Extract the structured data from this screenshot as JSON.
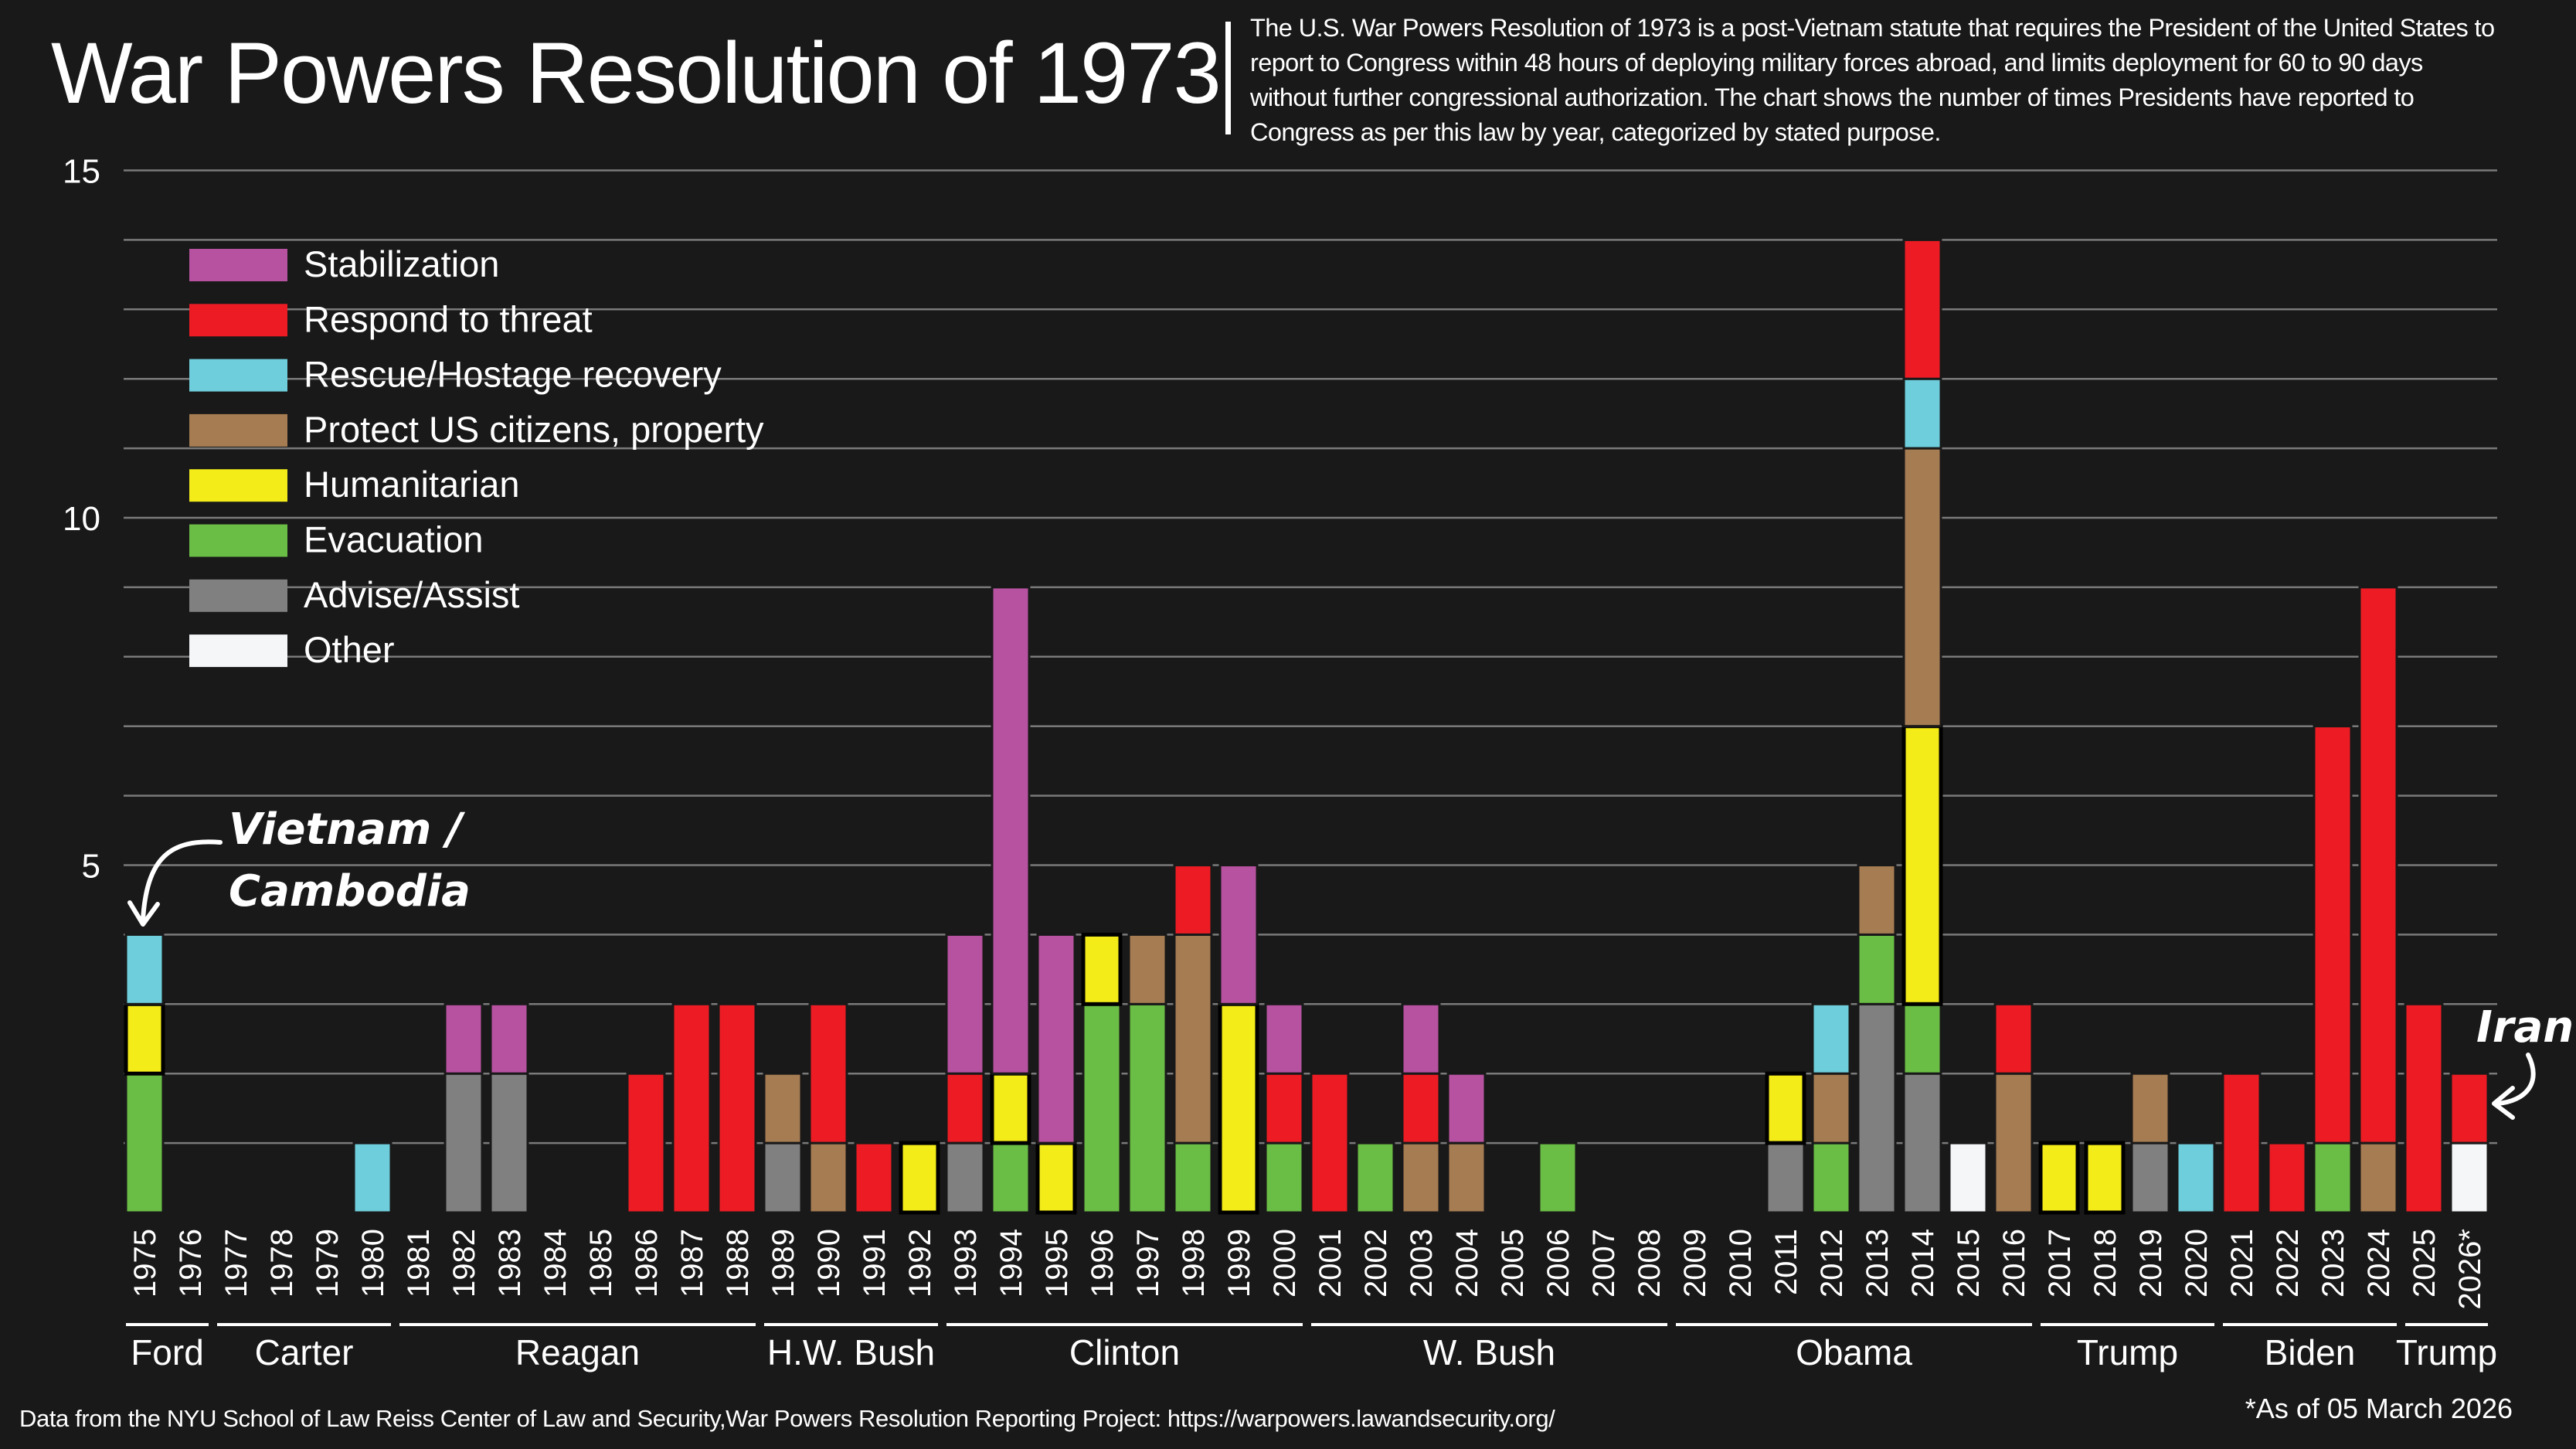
{
  "header": {
    "title": "War Powers Resolution of 1973",
    "description": "The  U.S. War Powers Resolution of 1973 is a post-Vietnam statute that requires the President of the United States to report to Congress within 48 hours of deploying military forces abroad, and limits deployment for 60 to 90 days without further congressional authorization. The chart shows the number of times Presidents have reported to Congress as per this law by year, categorized by stated purpose."
  },
  "footer": {
    "source": "Data from the NYU School of Law Reiss Center of Law and Security,War Powers Resolution Reporting Project: https://warpowers.lawandsecurity.org/",
    "as_of": "*As of 05 March 2026"
  },
  "chart_data": {
    "type": "bar",
    "stacked": true,
    "ylim": [
      0,
      15
    ],
    "yticks": [
      "5",
      "10",
      "15"
    ],
    "grid": true,
    "legend_placement": "top-left",
    "categories_stack_order": [
      "other",
      "advise",
      "evac",
      "human",
      "protect",
      "rescue",
      "threat",
      "stab"
    ],
    "legend": [
      {
        "key": "stab",
        "label": "Stabilization",
        "color": "#b752a0"
      },
      {
        "key": "threat",
        "label": "Respond to threat",
        "color": "#ed1c24"
      },
      {
        "key": "rescue",
        "label": "Rescue/Hostage recovery",
        "color": "#6ecedb"
      },
      {
        "key": "protect",
        "label": "Protect US citizens, property",
        "color": "#a67c52"
      },
      {
        "key": "human",
        "label": "Humanitarian",
        "color": "#f3ec19"
      },
      {
        "key": "evac",
        "label": "Evacuation",
        "color": "#6abd45"
      },
      {
        "key": "advise",
        "label": "Advise/Assist",
        "color": "#808080"
      },
      {
        "key": "other",
        "label": "Other",
        "color": "#f4f6f8"
      }
    ],
    "years": [
      {
        "label": "1975",
        "counts": {
          "evac": 2,
          "human": 1,
          "rescue": 1
        }
      },
      {
        "label": "1976",
        "counts": {}
      },
      {
        "label": "1977",
        "counts": {}
      },
      {
        "label": "1978",
        "counts": {}
      },
      {
        "label": "1979",
        "counts": {}
      },
      {
        "label": "1980",
        "counts": {
          "rescue": 1
        }
      },
      {
        "label": "1981",
        "counts": {}
      },
      {
        "label": "1982",
        "counts": {
          "advise": 2,
          "stab": 1
        }
      },
      {
        "label": "1983",
        "counts": {
          "advise": 2,
          "stab": 1
        }
      },
      {
        "label": "1984",
        "counts": {}
      },
      {
        "label": "1985",
        "counts": {}
      },
      {
        "label": "1986",
        "counts": {
          "threat": 2
        }
      },
      {
        "label": "1987",
        "counts": {
          "threat": 3
        }
      },
      {
        "label": "1988",
        "counts": {
          "threat": 3
        }
      },
      {
        "label": "1989",
        "counts": {
          "advise": 1,
          "protect": 1
        }
      },
      {
        "label": "1990",
        "counts": {
          "protect": 1,
          "threat": 2
        }
      },
      {
        "label": "1991",
        "counts": {
          "threat": 1
        }
      },
      {
        "label": "1992",
        "counts": {
          "human": 1
        }
      },
      {
        "label": "1993",
        "counts": {
          "advise": 1,
          "threat": 1,
          "stab": 2
        }
      },
      {
        "label": "1994",
        "counts": {
          "evac": 1,
          "human": 1,
          "stab": 7
        }
      },
      {
        "label": "1995",
        "counts": {
          "human": 1,
          "stab": 3
        }
      },
      {
        "label": "1996",
        "counts": {
          "evac": 3,
          "human": 1
        }
      },
      {
        "label": "1997",
        "counts": {
          "evac": 3,
          "protect": 1
        }
      },
      {
        "label": "1998",
        "counts": {
          "evac": 1,
          "protect": 3,
          "threat": 1
        }
      },
      {
        "label": "1999",
        "counts": {
          "human": 3,
          "stab": 2
        }
      },
      {
        "label": "2000",
        "counts": {
          "evac": 1,
          "threat": 1,
          "stab": 1
        }
      },
      {
        "label": "2001",
        "counts": {
          "threat": 2
        }
      },
      {
        "label": "2002",
        "counts": {
          "evac": 1
        }
      },
      {
        "label": "2003",
        "counts": {
          "protect": 1,
          "threat": 1,
          "stab": 1
        }
      },
      {
        "label": "2004",
        "counts": {
          "protect": 1,
          "stab": 1
        }
      },
      {
        "label": "2005",
        "counts": {}
      },
      {
        "label": "2006",
        "counts": {
          "evac": 1
        }
      },
      {
        "label": "2007",
        "counts": {}
      },
      {
        "label": "2008",
        "counts": {}
      },
      {
        "label": "2009",
        "counts": {}
      },
      {
        "label": "2010",
        "counts": {}
      },
      {
        "label": "2011",
        "counts": {
          "advise": 1,
          "human": 1
        }
      },
      {
        "label": "2012",
        "counts": {
          "evac": 1,
          "protect": 1,
          "rescue": 1
        }
      },
      {
        "label": "2013",
        "counts": {
          "advise": 3,
          "evac": 1,
          "protect": 1
        }
      },
      {
        "label": "2014",
        "counts": {
          "advise": 2,
          "evac": 1,
          "human": 4,
          "protect": 4,
          "rescue": 1,
          "threat": 2
        }
      },
      {
        "label": "2015",
        "counts": {
          "other": 1
        }
      },
      {
        "label": "2016",
        "counts": {
          "protect": 2,
          "threat": 1
        }
      },
      {
        "label": "2017",
        "counts": {
          "human": 1
        }
      },
      {
        "label": "2018",
        "counts": {
          "human": 1
        }
      },
      {
        "label": "2019",
        "counts": {
          "advise": 1,
          "protect": 1
        }
      },
      {
        "label": "2020",
        "counts": {
          "rescue": 1
        }
      },
      {
        "label": "2021",
        "counts": {
          "threat": 2
        }
      },
      {
        "label": "2022",
        "counts": {
          "threat": 1
        }
      },
      {
        "label": "2023",
        "counts": {
          "evac": 1,
          "threat": 6
        }
      },
      {
        "label": "2024",
        "counts": {
          "protect": 1,
          "threat": 8
        }
      },
      {
        "label": "2025",
        "counts": {
          "threat": 3
        }
      },
      {
        "label": "2026*",
        "counts": {
          "other": 1,
          "threat": 1
        }
      }
    ],
    "presidents": [
      {
        "name": "Ford",
        "from": "1975",
        "to": "1976"
      },
      {
        "name": "Carter",
        "from": "1977",
        "to": "1980"
      },
      {
        "name": "Reagan",
        "from": "1981",
        "to": "1988"
      },
      {
        "name": "H.W. Bush",
        "from": "1989",
        "to": "1992"
      },
      {
        "name": "Clinton",
        "from": "1993",
        "to": "2000"
      },
      {
        "name": "W. Bush",
        "from": "2001",
        "to": "2008"
      },
      {
        "name": "Obama",
        "from": "2009",
        "to": "2016"
      },
      {
        "name": "Trump",
        "from": "2017",
        "to": "2020"
      },
      {
        "name": "Biden",
        "from": "2021",
        "to": "2024"
      },
      {
        "name": "Trump",
        "from": "2025",
        "to": "2026*"
      }
    ],
    "annotations": [
      {
        "line1": "Vietnam /",
        "line2": "Cambodia",
        "year": "1975"
      },
      {
        "line1": "Iran",
        "year": "2026*"
      }
    ]
  }
}
